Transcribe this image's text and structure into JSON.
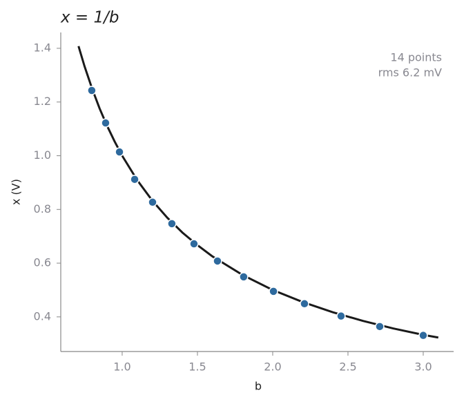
{
  "chart_data": {
    "type": "scatter",
    "title": "x = 1/b",
    "xlabel": "b",
    "ylabel": "x  (V)",
    "annotations": [
      "14 points",
      "rms 6.2 mV"
    ],
    "xlim": [
      0.592,
      3.202
    ],
    "ylim": [
      0.271,
      1.459
    ],
    "xticks": [
      {
        "value": 1,
        "label": "1.0"
      },
      1.5,
      {
        "value": 2,
        "label": "2.0"
      },
      2.5,
      {
        "value": 3,
        "label": "3.0"
      }
    ],
    "yticks": [
      0.4,
      0.6,
      0.8,
      {
        "value": 1,
        "label": "1.0"
      },
      1.2,
      1.4
    ],
    "series": [
      {
        "kind": "points",
        "color": "#2e6a9e",
        "x": [
          0.798,
          0.89,
          0.982,
          1.083,
          1.202,
          1.33,
          1.477,
          1.633,
          1.807,
          2.005,
          2.211,
          2.454,
          2.711,
          3.0
        ],
        "values": [
          1.243,
          1.122,
          1.014,
          0.912,
          0.827,
          0.747,
          0.672,
          0.608,
          0.549,
          0.495,
          0.449,
          0.403,
          0.364,
          0.331
        ]
      },
      {
        "kind": "line",
        "color": "#1a1a1a",
        "x": [
          0.71,
          0.75,
          0.8,
          0.85,
          0.9,
          0.95,
          1.0,
          1.1,
          1.2,
          1.3,
          1.4,
          1.5,
          1.6,
          1.8,
          2.0,
          2.2,
          2.4,
          2.6,
          2.8,
          3.0,
          3.1
        ],
        "values": [
          1.408,
          1.333,
          1.25,
          1.176,
          1.111,
          1.053,
          1.0,
          0.909,
          0.833,
          0.769,
          0.714,
          0.667,
          0.625,
          0.556,
          0.5,
          0.455,
          0.417,
          0.385,
          0.357,
          0.333,
          0.323
        ]
      }
    ]
  }
}
